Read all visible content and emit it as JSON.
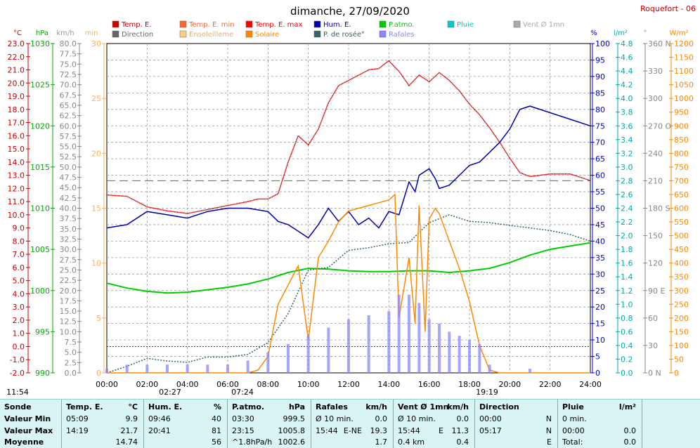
{
  "header": {
    "title": "dimanche, 27/09/2020",
    "station": "Roquefort - 06"
  },
  "legend": [
    {
      "label": "Temp. E.",
      "color": "#cc0000"
    },
    {
      "label": "Temp. E. min",
      "color": "#ff6633"
    },
    {
      "label": "Temp. E. max",
      "color": "#ff0000"
    },
    {
      "label": "Hum. E.",
      "color": "#0000aa"
    },
    {
      "label": "P.atmo.",
      "color": "#00cc00"
    },
    {
      "label": "Pluie",
      "color": "#00cccc"
    },
    {
      "label": "Vent Ø 1mn",
      "color": "#aaaaaa"
    },
    {
      "label": "Direction",
      "color": "#666666"
    },
    {
      "label": "Ensoleilleme",
      "color": "#ffcc88"
    },
    {
      "label": "Solaire",
      "color": "#ff8800"
    },
    {
      "label": "P. de rosée°",
      "color": "#336666"
    },
    {
      "label": "Rafales",
      "color": "#8888ff"
    }
  ],
  "units": {
    "temp": "°C",
    "press": "hPa",
    "wind": "km/h",
    "min": "min",
    "hum": "%",
    "rain": "l/m²",
    "dir": "°",
    "solar": "W/m²"
  },
  "axes": {
    "temp": [
      "23.0",
      "22.0",
      "21.0",
      "20.0",
      "19.0",
      "18.0",
      "17.0",
      "16.0",
      "15.0",
      "14.0",
      "13.0",
      "12.0",
      "11.0",
      "10.0",
      "9.0",
      "8.0",
      "7.0",
      "6.0",
      "5.0",
      "4.0",
      "3.0",
      "2.0",
      "1.0",
      "0.0",
      "-1.0",
      "-2.0"
    ],
    "press": [
      "1030",
      "1025",
      "1020",
      "1015",
      "1010",
      "1005",
      "1000",
      "995",
      "990"
    ],
    "wind": [
      "80.0",
      "77.5",
      "75.0",
      "72.5",
      "70.0",
      "67.5",
      "65.0",
      "62.5",
      "60.0",
      "57.5",
      "55.0",
      "52.5",
      "50.0",
      "47.5",
      "45.0",
      "42.5",
      "40.0",
      "37.5",
      "35.0",
      "32.5",
      "30.0",
      "27.5",
      "25.0",
      "22.5",
      "20.0",
      "17.5",
      "15.0",
      "12.5",
      "10.0",
      "7.5",
      "5.0",
      "2.5",
      "0.0"
    ],
    "minutes": [
      "30",
      "25",
      "20",
      "15",
      "10",
      "5",
      "0"
    ],
    "hum": [
      "100",
      "95",
      "90",
      "85",
      "80",
      "75",
      "70",
      "65",
      "60",
      "55",
      "50",
      "45",
      "40",
      "35",
      "30",
      "25",
      "20",
      "15",
      "10",
      "5",
      "0"
    ],
    "rain": [
      "4.8",
      "4.6",
      "4.4",
      "4.2",
      "4.0",
      "3.8",
      "3.6",
      "3.4",
      "3.2",
      "3.0",
      "2.8",
      "2.6",
      "2.4",
      "2.2",
      "2.0",
      "1.8",
      "1.6",
      "1.4",
      "1.2",
      "1.0",
      "0.8",
      "0.6",
      "0.4",
      "0.2",
      "0.0"
    ],
    "dir": [
      "360 N",
      "330",
      "300",
      "270 O",
      "240",
      "210",
      "180 S",
      "150",
      "120",
      "90 E",
      "60",
      "30",
      "0 N"
    ],
    "solar": [
      "1200",
      "1150",
      "1100",
      "1050",
      "1000",
      "950",
      "900",
      "850",
      "800",
      "750",
      "700",
      "650",
      "600",
      "550",
      "500",
      "450",
      "400",
      "350",
      "300",
      "250",
      "200",
      "150",
      "100",
      "50",
      "0"
    ],
    "time": [
      "00:00",
      "02:00",
      "04:00",
      "06:00",
      "08:00",
      "10:00",
      "12:00",
      "14:00",
      "16:00",
      "18:00",
      "20:00",
      "22:00",
      "24:00"
    ]
  },
  "sun_marks": [
    "11:54",
    "02:27",
    "07:24",
    "19:19"
  ],
  "chart_data": {
    "type": "line",
    "x_unit": "hour",
    "xlim": [
      0,
      24
    ],
    "series": [
      {
        "name": "Temp. E.",
        "axis": "temp",
        "color": "#cc0000",
        "x": [
          0,
          1,
          2,
          3,
          4,
          5,
          6,
          7,
          7.5,
          8,
          8.5,
          9,
          9.5,
          10,
          10.5,
          11,
          11.5,
          12,
          12.5,
          13,
          13.5,
          14,
          14.3,
          14.5,
          15,
          15.5,
          16,
          16.5,
          17,
          17.5,
          18,
          18.5,
          19,
          19.5,
          20,
          20.5,
          21,
          22,
          23,
          24
        ],
        "y": [
          11.5,
          11.4,
          10.6,
          10.3,
          10.1,
          10.4,
          10.7,
          11.0,
          11.2,
          11.2,
          11.6,
          14.0,
          16.0,
          15.3,
          16.5,
          18.5,
          19.8,
          20.2,
          20.6,
          21.0,
          21.1,
          21.7,
          21.2,
          20.9,
          19.8,
          20.6,
          20.1,
          20.8,
          20.2,
          19.4,
          18.4,
          17.6,
          16.6,
          15.5,
          14.3,
          13.2,
          12.9,
          13.1,
          13.1,
          12.6
        ]
      },
      {
        "name": "Hum. E.",
        "axis": "hum",
        "color": "#0000aa",
        "x": [
          0,
          1,
          2,
          3,
          4,
          5,
          6,
          7,
          8,
          8.5,
          9,
          9.5,
          10,
          10.5,
          11,
          11.5,
          12,
          12.5,
          13,
          13.5,
          14,
          14.5,
          15,
          15.3,
          15.5,
          16,
          16.3,
          16.5,
          17,
          17.5,
          18,
          18.5,
          19,
          19.5,
          20,
          20.5,
          21,
          22,
          23,
          24
        ],
        "y": [
          44,
          45,
          49,
          48,
          47,
          49,
          50,
          50,
          49,
          46,
          45,
          43,
          41,
          45,
          50,
          46,
          49,
          45,
          47,
          44,
          49,
          48,
          58,
          55,
          60,
          62,
          59,
          56,
          57,
          60,
          63,
          64,
          67,
          70,
          74,
          80,
          81,
          79,
          77,
          75
        ]
      },
      {
        "name": "P.atmo.",
        "axis": "press",
        "color": "#00cc00",
        "x": [
          0,
          1,
          2,
          3,
          4,
          5,
          6,
          7,
          8,
          9,
          10,
          11,
          12,
          13,
          14,
          15,
          16,
          17,
          18,
          19,
          20,
          21,
          22,
          23,
          24
        ],
        "y": [
          1000.9,
          1000.3,
          999.9,
          999.7,
          999.8,
          1000.1,
          1000.4,
          1000.8,
          1001.4,
          1002.2,
          1002.7,
          1002.6,
          1002.4,
          1002.3,
          1002.3,
          1002.4,
          1002.4,
          1002.2,
          1002.4,
          1002.7,
          1003.4,
          1004.3,
          1005.0,
          1005.4,
          1005.8
        ]
      },
      {
        "name": "P. de rosée°",
        "axis": "temp",
        "color": "#336666",
        "x": [
          0,
          1,
          2,
          3,
          4,
          5,
          6,
          7,
          8,
          9,
          10,
          11,
          12,
          13,
          14,
          15,
          16,
          17,
          18,
          19,
          20,
          21,
          22,
          23,
          24
        ],
        "y": [
          -2.0,
          -1.5,
          -0.9,
          -1.1,
          -1.2,
          -0.8,
          -0.8,
          -0.6,
          0.3,
          2.5,
          5.8,
          6.0,
          7.3,
          7.5,
          7.8,
          7.9,
          9.4,
          10.0,
          9.5,
          9.4,
          9.2,
          9.0,
          8.8,
          8.5,
          8.0
        ]
      },
      {
        "name": "Solaire",
        "axis": "solar",
        "color": "#ff8800",
        "x": [
          0,
          7,
          7.5,
          8,
          8.5,
          9,
          9.5,
          10,
          10.5,
          11,
          11.5,
          12,
          12.5,
          13,
          13.5,
          14,
          14.3,
          14.5,
          15,
          15.3,
          15.5,
          15.8,
          16,
          16.3,
          16.5,
          17,
          17.5,
          18,
          18.5,
          19,
          19.5,
          24
        ],
        "y": [
          0,
          0,
          10,
          60,
          250,
          320,
          390,
          120,
          420,
          480,
          550,
          590,
          600,
          610,
          620,
          630,
          650,
          200,
          420,
          180,
          610,
          150,
          560,
          600,
          580,
          480,
          380,
          260,
          100,
          10,
          0,
          0
        ]
      },
      {
        "name": "Rafales",
        "axis": "wind",
        "color": "#8888ff",
        "x": [
          0,
          1,
          2,
          3,
          4,
          5,
          6,
          7,
          8,
          9,
          10,
          11,
          12,
          13,
          14,
          14.5,
          15,
          15.5,
          16,
          16.5,
          17,
          17.5,
          18,
          18.5,
          19,
          20,
          21,
          22,
          23,
          24
        ],
        "y": [
          1,
          2,
          2,
          2,
          2,
          2,
          2,
          3,
          5,
          7,
          9,
          11,
          13,
          14,
          15,
          19,
          19,
          17,
          13,
          12,
          10,
          9,
          8,
          7,
          2,
          0,
          1,
          0,
          0,
          0
        ]
      }
    ],
    "reference_lines": [
      {
        "axis": "dir",
        "value": 210,
        "color": "#00aa00",
        "style": "dashed"
      },
      {
        "axis": "temp",
        "value": 0,
        "color": "#cc0000",
        "style": "dotted"
      }
    ]
  },
  "table": {
    "cols": [
      {
        "title": "Sonde",
        "unit": "",
        "rows": [
          "Valeur Min",
          "Valeur Max",
          "Moyenne"
        ]
      },
      {
        "title": "Temp. E.",
        "unit": "°C",
        "times": [
          "05:09",
          "14:19",
          ""
        ],
        "values": [
          "9.9",
          "21.7",
          "14.74"
        ]
      },
      {
        "title": "Hum. E.",
        "unit": "%",
        "times": [
          "09:46",
          "20:41",
          ""
        ],
        "values": [
          "40",
          "81",
          "56"
        ]
      },
      {
        "title": "P.atmo.",
        "unit": "hPa",
        "times": [
          "03:30",
          "23:15",
          "^1.8hPa/h"
        ],
        "values": [
          "999.5",
          "1005.8",
          "1002.6"
        ]
      },
      {
        "title": "Rafales",
        "unit": "km/h",
        "times": [
          "Ø 10 min.",
          "15:44",
          ""
        ],
        "mid": [
          "",
          "E-NE",
          ""
        ],
        "values": [
          "0.0",
          "19.3",
          "1.7"
        ]
      },
      {
        "title": "Vent Ø 1mn",
        "unit": "km/h",
        "times": [
          "Ø 10 min.",
          "15:44",
          "0.4 km"
        ],
        "mid": [
          "",
          "E",
          ""
        ],
        "values": [
          "0.0",
          "11.3",
          "0.4"
        ]
      },
      {
        "title": "Direction",
        "unit": "",
        "times": [
          "00:00",
          "05:17",
          ""
        ],
        "values": [
          "N",
          "N",
          "E"
        ]
      },
      {
        "title": "Pluie",
        "unit": "l/m²",
        "times": [
          "0 min.",
          "00:00",
          "Total:"
        ],
        "values": [
          "",
          "0.0",
          "0.0"
        ]
      }
    ]
  }
}
